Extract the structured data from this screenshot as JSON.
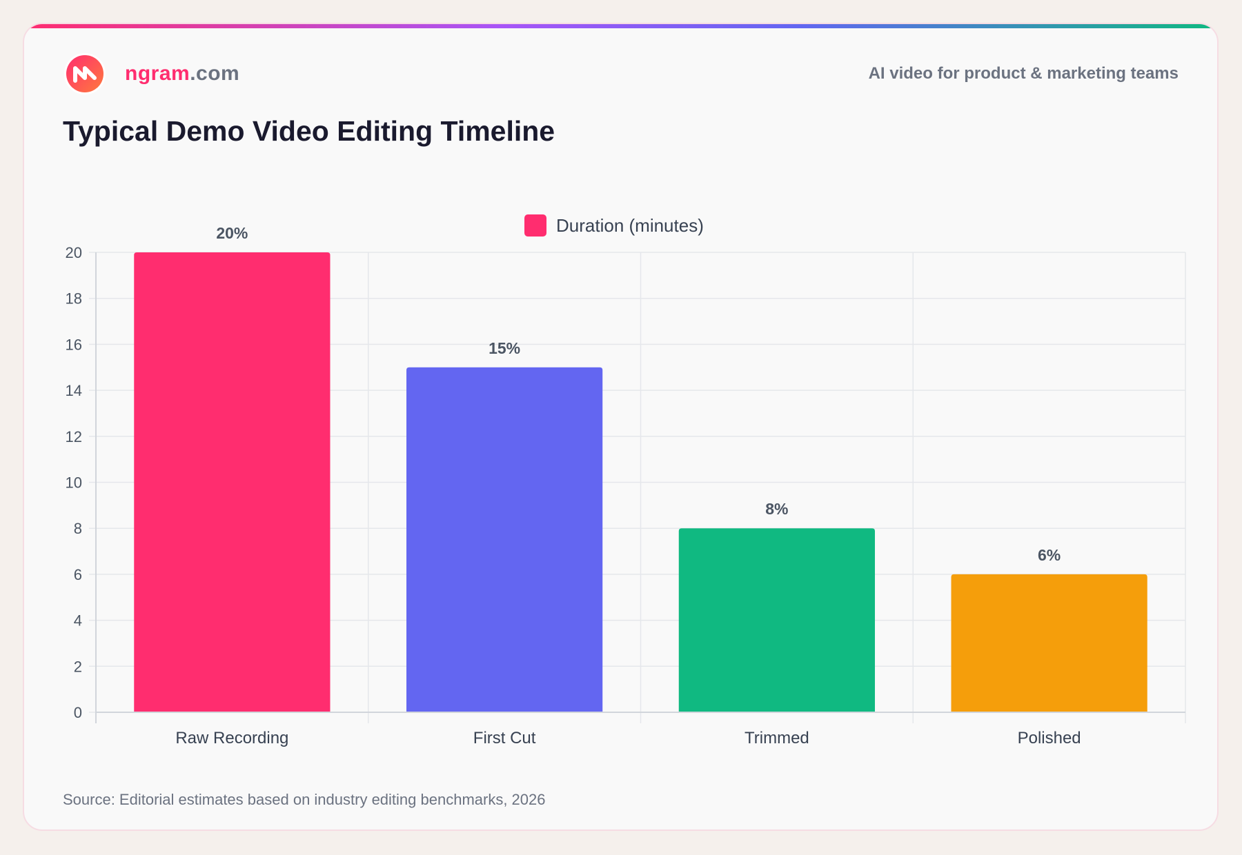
{
  "brand": {
    "name_part1": "ngram",
    "name_part2": ".com",
    "logo_icon": "ngram-logo-icon"
  },
  "tagline": "AI video for product & marketing teams",
  "colors": {
    "accent": "#ff2d6f",
    "bars": [
      "#ff2d6f",
      "#6366f1",
      "#10b981",
      "#f59e0b"
    ]
  },
  "chart_data": {
    "type": "bar",
    "title": "Typical Demo Video Editing Timeline",
    "categories": [
      "Raw Recording",
      "First Cut",
      "Trimmed",
      "Polished"
    ],
    "series": [
      {
        "name": "Duration (minutes)",
        "values": [
          20,
          15,
          8,
          6
        ]
      }
    ],
    "data_labels": [
      "20%",
      "15%",
      "8%",
      "6%"
    ],
    "y_ticks": [
      0,
      2,
      4,
      6,
      8,
      10,
      12,
      14,
      16,
      18,
      20
    ],
    "ylim": [
      0,
      20
    ],
    "xlabel": "",
    "ylabel": "",
    "grid": true,
    "legend_position": "top-center"
  },
  "source": "Source: Editorial estimates based on industry editing benchmarks, 2026"
}
